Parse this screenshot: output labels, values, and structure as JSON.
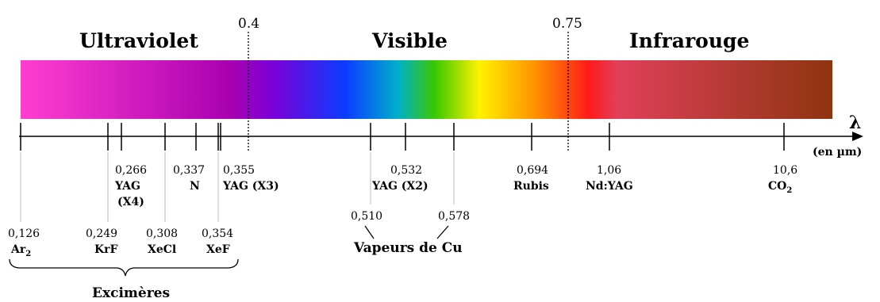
{
  "spectrum": {
    "regions": [
      {
        "key": "uv",
        "label": "Ultraviolet"
      },
      {
        "key": "vis",
        "label": "Visible"
      },
      {
        "key": "ir",
        "label": "Infrarouge"
      }
    ],
    "boundaries": [
      {
        "key": "b1",
        "value": "0.4"
      },
      {
        "key": "b2",
        "value": "0.75"
      }
    ],
    "axis": {
      "symbol": "λ",
      "unit": "(en µm)"
    }
  },
  "lasers": [
    {
      "key": "ar2",
      "value": "0,126",
      "name": "Ar",
      "sub": "2"
    },
    {
      "key": "krf",
      "value": "0,249",
      "name": "KrF"
    },
    {
      "key": "yag4",
      "value": "0,266",
      "name": "YAG",
      "name2": "(X4)"
    },
    {
      "key": "xecl",
      "value": "0,308",
      "name": "XeCl"
    },
    {
      "key": "n",
      "value": "0,337",
      "name": "N"
    },
    {
      "key": "xef",
      "value": "0,354",
      "name": "XeF"
    },
    {
      "key": "yag3",
      "value": "0,355",
      "name": "YAG (X3)"
    },
    {
      "key": "cu510",
      "value": "0,510"
    },
    {
      "key": "yag2",
      "value": "0,532",
      "name": "YAG (X2)"
    },
    {
      "key": "cu578",
      "value": "0,578"
    },
    {
      "key": "rubis",
      "value": "0,694",
      "name": "Rubis"
    },
    {
      "key": "ndyag",
      "value": "1,06",
      "name": "Nd:YAG"
    },
    {
      "key": "co2",
      "value": "10,6",
      "name": "CO",
      "sub": "2"
    }
  ],
  "groups": {
    "cu": "Vapeurs de Cu",
    "excimers": "Excimères"
  },
  "colors": {
    "uv_start": "#ff3ed0",
    "uv_end": "#a800b0",
    "violet": "#7b00d8",
    "blue": "#0a3cff",
    "cyan": "#00b0c8",
    "green": "#38c800",
    "yellow": "#fff200",
    "orange": "#ff9000",
    "red": "#ff1a1a",
    "ir_start": "#e0405a",
    "ir_end": "#8e3410",
    "leader": "#bdbdbd"
  }
}
